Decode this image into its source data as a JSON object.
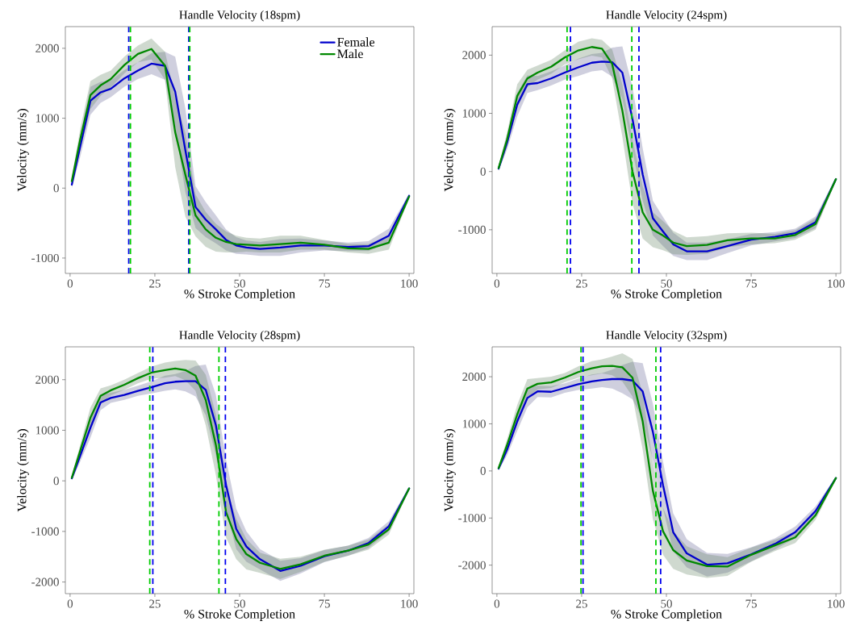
{
  "chart_data": [
    {
      "type": "line",
      "title": "Handle Velocity (18spm)",
      "xlabel": "% Stroke Completion",
      "ylabel": "Velocity (mm/s)",
      "x": [
        0.5,
        3,
        6,
        9,
        12,
        16,
        20,
        24,
        28,
        31,
        34,
        37,
        40,
        43,
        46,
        49,
        52,
        56,
        62,
        68,
        75,
        82,
        88,
        94,
        100
      ],
      "series": [
        {
          "name": "Female",
          "color": "#0000cc",
          "values": [
            50,
            600,
            1250,
            1370,
            1420,
            1570,
            1680,
            1780,
            1750,
            1380,
            540,
            -270,
            -450,
            -590,
            -740,
            -820,
            -850,
            -870,
            -850,
            -820,
            -820,
            -840,
            -830,
            -680,
            -110
          ],
          "lower": [
            0,
            450,
            1050,
            1220,
            1300,
            1450,
            1560,
            1630,
            1550,
            880,
            -60,
            -570,
            -700,
            -790,
            -890,
            -940,
            -950,
            -970,
            -970,
            -920,
            -890,
            -900,
            -900,
            -780,
            -140
          ],
          "upper": [
            100,
            750,
            1450,
            1520,
            1540,
            1690,
            1800,
            1930,
            1950,
            1880,
            1140,
            30,
            -200,
            -390,
            -590,
            -700,
            -750,
            -770,
            -730,
            -720,
            -750,
            -780,
            -760,
            -580,
            -80
          ]
        },
        {
          "name": "Male",
          "color": "#008800",
          "values": [
            100,
            700,
            1330,
            1470,
            1560,
            1760,
            1920,
            1990,
            1750,
            800,
            190,
            -390,
            -590,
            -710,
            -770,
            -800,
            -810,
            -820,
            -800,
            -780,
            -810,
            -860,
            -870,
            -780,
            -120
          ],
          "lower": [
            50,
            550,
            1130,
            1320,
            1440,
            1640,
            1800,
            1840,
            1550,
            300,
            -410,
            -690,
            -840,
            -910,
            -920,
            -920,
            -910,
            -920,
            -920,
            -880,
            -880,
            -920,
            -940,
            -880,
            -150
          ],
          "upper": [
            150,
            850,
            1530,
            1620,
            1680,
            1880,
            2040,
            2140,
            1950,
            1300,
            790,
            -90,
            -340,
            -510,
            -620,
            -680,
            -710,
            -720,
            -680,
            -680,
            -740,
            -800,
            -800,
            -680,
            -90
          ]
        }
      ],
      "ref_lines": [
        {
          "axis": "x",
          "value": 17.3,
          "color": "#0000ee",
          "line_style": "dashed"
        },
        {
          "axis": "x",
          "value": 17.8,
          "color": "#00cc00",
          "line_style": "dashed"
        },
        {
          "axis": "x",
          "value": 35.0,
          "color": "#0000ee",
          "line_style": "dashed"
        },
        {
          "axis": "x",
          "value": 35.3,
          "color": "#00cc00",
          "line_style": "dashed"
        }
      ],
      "xlim": [
        -1.4,
        101.4
      ],
      "ylim": [
        -1220,
        2310
      ],
      "xticks": [
        0,
        25,
        50,
        75,
        100
      ],
      "yticks": [
        -1000,
        0,
        1000,
        2000
      ],
      "legend": "top right",
      "line_style": "solid"
    },
    {
      "type": "line",
      "title": "Handle Velocity (24spm)",
      "xlabel": "% Stroke Completion",
      "ylabel": "Velocity (mm/s)",
      "x": [
        0.5,
        3,
        6,
        9,
        12,
        16,
        20,
        24,
        28,
        31,
        34,
        37,
        40,
        43,
        46,
        49,
        52,
        56,
        62,
        68,
        75,
        82,
        88,
        94,
        100
      ],
      "series": [
        {
          "color": "#0000cc",
          "values": [
            50,
            500,
            1150,
            1500,
            1520,
            1600,
            1700,
            1790,
            1870,
            1890,
            1880,
            1700,
            900,
            -50,
            -800,
            -1030,
            -1250,
            -1370,
            -1370,
            -1280,
            -1170,
            -1120,
            -1060,
            -870,
            -130
          ],
          "lower": [
            10,
            380,
            950,
            1350,
            1400,
            1480,
            1580,
            1640,
            1720,
            1740,
            1630,
            1250,
            350,
            -500,
            -1100,
            -1280,
            -1450,
            -1520,
            -1520,
            -1400,
            -1270,
            -1200,
            -1140,
            -970,
            -160
          ],
          "upper": [
            90,
            620,
            1350,
            1650,
            1640,
            1720,
            1820,
            1940,
            2020,
            2040,
            2130,
            2150,
            1450,
            400,
            -500,
            -780,
            -1050,
            -1220,
            -1220,
            -1160,
            -1070,
            -1040,
            -980,
            -770,
            -100
          ]
        },
        {
          "color": "#008800",
          "values": [
            60,
            550,
            1300,
            1600,
            1700,
            1800,
            1960,
            2080,
            2140,
            2110,
            1850,
            1050,
            0,
            -700,
            -1000,
            -1100,
            -1220,
            -1280,
            -1260,
            -1180,
            -1150,
            -1150,
            -1090,
            -900,
            -130
          ],
          "lower": [
            20,
            430,
            1100,
            1450,
            1580,
            1680,
            1840,
            1930,
            1990,
            1960,
            1600,
            600,
            -550,
            -1150,
            -1300,
            -1350,
            -1420,
            -1430,
            -1410,
            -1300,
            -1250,
            -1230,
            -1170,
            -1000,
            -160
          ],
          "upper": [
            100,
            670,
            1500,
            1750,
            1820,
            1920,
            2080,
            2230,
            2290,
            2260,
            2100,
            1500,
            550,
            -250,
            -700,
            -850,
            -1020,
            -1130,
            -1110,
            -1060,
            -1050,
            -1070,
            -1010,
            -800,
            -100
          ]
        }
      ],
      "ref_lines": [
        {
          "axis": "x",
          "value": 20.7,
          "color": "#00cc00",
          "line_style": "dashed"
        },
        {
          "axis": "x",
          "value": 21.7,
          "color": "#0000ee",
          "line_style": "dashed"
        },
        {
          "axis": "x",
          "value": 39.8,
          "color": "#00cc00",
          "line_style": "dashed"
        },
        {
          "axis": "x",
          "value": 41.9,
          "color": "#0000ee",
          "line_style": "dashed"
        }
      ],
      "xlim": [
        -1.4,
        101.4
      ],
      "ylim": [
        -1750,
        2490
      ],
      "xticks": [
        0,
        25,
        50,
        75,
        100
      ],
      "yticks": [
        -1000,
        0,
        1000,
        2000
      ],
      "line_style": "solid"
    },
    {
      "type": "line",
      "title": "Handle Velocity (28spm)",
      "xlabel": "% Stroke Completion",
      "ylabel": "Velocity (mm/s)",
      "x": [
        0.5,
        3,
        6,
        9,
        12,
        16,
        20,
        24,
        28,
        31,
        34,
        37,
        40,
        43,
        46,
        49,
        52,
        56,
        62,
        68,
        75,
        82,
        88,
        94,
        100
      ],
      "series": [
        {
          "color": "#0000cc",
          "values": [
            50,
            500,
            1050,
            1550,
            1640,
            1700,
            1780,
            1850,
            1930,
            1960,
            1970,
            1970,
            1800,
            1100,
            -80,
            -950,
            -1300,
            -1550,
            -1780,
            -1680,
            -1490,
            -1380,
            -1230,
            -900,
            -150
          ],
          "lower": [
            10,
            380,
            850,
            1400,
            1540,
            1600,
            1680,
            1730,
            1780,
            1810,
            1770,
            1670,
            1300,
            500,
            -580,
            -1350,
            -1600,
            -1750,
            -1980,
            -1830,
            -1610,
            -1480,
            -1330,
            -1000,
            -180
          ],
          "upper": [
            90,
            620,
            1250,
            1700,
            1740,
            1800,
            1880,
            1970,
            2080,
            2110,
            2170,
            2270,
            2300,
            1700,
            420,
            -550,
            -1000,
            -1350,
            -1580,
            -1530,
            -1370,
            -1280,
            -1130,
            -800,
            -120
          ]
        },
        {
          "color": "#008800",
          "values": [
            60,
            600,
            1250,
            1680,
            1790,
            1900,
            2030,
            2140,
            2190,
            2220,
            2190,
            2080,
            1600,
            710,
            -620,
            -1150,
            -1450,
            -1620,
            -1740,
            -1650,
            -1480,
            -1380,
            -1260,
            -960,
            -150
          ],
          "lower": [
            20,
            480,
            1050,
            1530,
            1690,
            1800,
            1930,
            2020,
            2040,
            2070,
            1990,
            1780,
            1100,
            110,
            -1120,
            -1550,
            -1750,
            -1820,
            -1940,
            -1800,
            -1600,
            -1480,
            -1360,
            -1060,
            -180
          ],
          "upper": [
            100,
            720,
            1450,
            1830,
            1890,
            2000,
            2130,
            2260,
            2340,
            2370,
            2390,
            2380,
            2100,
            1310,
            -120,
            -750,
            -1150,
            -1420,
            -1540,
            -1500,
            -1360,
            -1280,
            -1160,
            -860,
            -120
          ]
        }
      ],
      "ref_lines": [
        {
          "axis": "x",
          "value": 23.5,
          "color": "#00cc00",
          "line_style": "dashed"
        },
        {
          "axis": "x",
          "value": 24.4,
          "color": "#0000ee",
          "line_style": "dashed"
        },
        {
          "axis": "x",
          "value": 43.9,
          "color": "#00cc00",
          "line_style": "dashed"
        },
        {
          "axis": "x",
          "value": 45.8,
          "color": "#0000ee",
          "line_style": "dashed"
        }
      ],
      "xlim": [
        -1.4,
        101.4
      ],
      "ylim": [
        -2230,
        2650
      ],
      "xticks": [
        0,
        25,
        50,
        75,
        100
      ],
      "yticks": [
        -2000,
        -1000,
        0,
        1000,
        2000
      ],
      "line_style": "solid"
    },
    {
      "type": "line",
      "title": "Handle Velocity (32spm)",
      "xlabel": "% Stroke Completion",
      "ylabel": "Velocity (mm/s)",
      "x": [
        0.5,
        3,
        6,
        9,
        12,
        16,
        20,
        24,
        28,
        31,
        34,
        37,
        40,
        43,
        46,
        49,
        52,
        56,
        62,
        68,
        75,
        82,
        88,
        94,
        100
      ],
      "series": [
        {
          "color": "#0000cc",
          "values": [
            50,
            450,
            1050,
            1550,
            1690,
            1680,
            1760,
            1840,
            1900,
            1930,
            1950,
            1950,
            1920,
            1690,
            830,
            -300,
            -1300,
            -1750,
            -1990,
            -1960,
            -1770,
            -1550,
            -1300,
            -850,
            -150
          ],
          "lower": [
            10,
            330,
            850,
            1350,
            1570,
            1560,
            1660,
            1720,
            1750,
            1780,
            1750,
            1650,
            1520,
            1090,
            230,
            -800,
            -1700,
            -2050,
            -2240,
            -2160,
            -1920,
            -1670,
            -1420,
            -950,
            -180
          ],
          "upper": [
            90,
            570,
            1250,
            1750,
            1810,
            1800,
            1860,
            1960,
            2050,
            2080,
            2150,
            2250,
            2320,
            2290,
            1430,
            200,
            -900,
            -1450,
            -1740,
            -1760,
            -1620,
            -1430,
            -1180,
            -750,
            -120
          ]
        },
        {
          "color": "#008800",
          "values": [
            60,
            550,
            1200,
            1750,
            1850,
            1880,
            1980,
            2100,
            2180,
            2220,
            2230,
            2200,
            1980,
            1050,
            -420,
            -1280,
            -1680,
            -1900,
            -2020,
            -2030,
            -1780,
            -1580,
            -1410,
            -940,
            -150
          ],
          "lower": [
            20,
            430,
            1000,
            1550,
            1730,
            1760,
            1880,
            1980,
            2030,
            2070,
            2030,
            1900,
            1580,
            450,
            -1020,
            -1780,
            -2080,
            -2200,
            -2270,
            -2230,
            -1930,
            -1700,
            -1530,
            -1040,
            -180
          ],
          "upper": [
            100,
            670,
            1400,
            1950,
            1970,
            2000,
            2080,
            2220,
            2330,
            2370,
            2430,
            2500,
            2380,
            1650,
            180,
            -780,
            -1280,
            -1600,
            -1770,
            -1830,
            -1630,
            -1460,
            -1290,
            -840,
            -120
          ]
        }
      ],
      "ref_lines": [
        {
          "axis": "x",
          "value": 24.8,
          "color": "#00cc00",
          "line_style": "dashed"
        },
        {
          "axis": "x",
          "value": 25.4,
          "color": "#0000ee",
          "line_style": "dashed"
        },
        {
          "axis": "x",
          "value": 46.9,
          "color": "#00cc00",
          "line_style": "dashed"
        },
        {
          "axis": "x",
          "value": 48.3,
          "color": "#0000ee",
          "line_style": "dashed"
        }
      ],
      "xlim": [
        -1.4,
        101.4
      ],
      "ylim": [
        -2605,
        2635
      ],
      "xticks": [
        0,
        25,
        50,
        75,
        100
      ],
      "yticks": [
        -2000,
        -1000,
        0,
        1000,
        2000
      ],
      "line_style": "solid"
    }
  ]
}
